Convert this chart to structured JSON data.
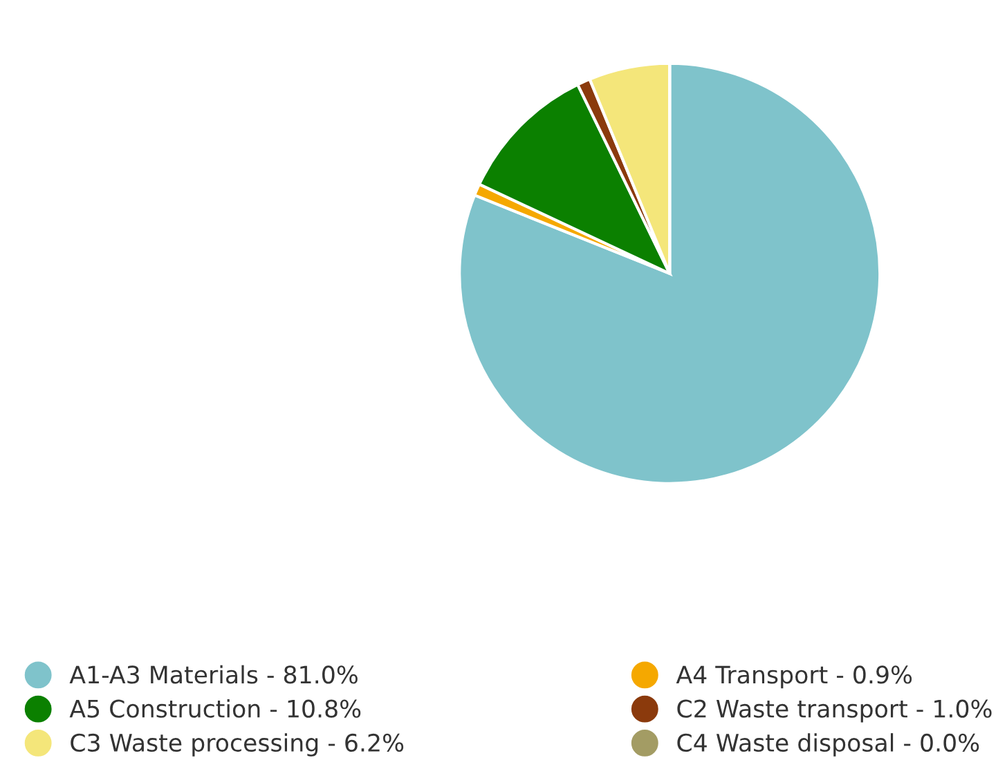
{
  "chart_data": {
    "type": "pie",
    "categories": [
      "A1-A3 Materials - 81.0%",
      "A4 Transport - 0.9%",
      "A5 Construction - 10.8%",
      "C2 Waste transport - 1.0%",
      "C3 Waste processing - 6.2%",
      "C4 Waste disposal - 0.0%"
    ],
    "values": [
      81.0,
      0.9,
      10.8,
      1.0,
      6.2,
      0.0
    ],
    "colors": [
      "#7fc3cb",
      "#f5a800",
      "#0b8000",
      "#8b3a0c",
      "#f4e67a",
      "#a39c64"
    ],
    "legend": "bottom"
  }
}
